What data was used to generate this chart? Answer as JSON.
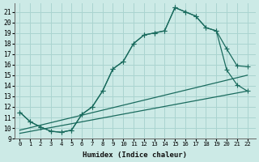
{
  "xlabel": "Humidex (Indice chaleur)",
  "bg_color": "#cceae6",
  "grid_color": "#aad4d0",
  "line_color": "#1a6b5e",
  "xlim": [
    -0.5,
    22.8
  ],
  "ylim": [
    9,
    21.8
  ],
  "xticks": [
    0,
    1,
    2,
    3,
    4,
    5,
    6,
    7,
    8,
    9,
    10,
    11,
    12,
    13,
    14,
    15,
    16,
    17,
    18,
    19,
    20,
    21,
    22
  ],
  "yticks": [
    9,
    10,
    11,
    12,
    13,
    14,
    15,
    16,
    17,
    18,
    19,
    20,
    21
  ],
  "curve_upper_x": [
    0,
    1,
    2,
    3,
    4,
    5,
    6,
    7,
    8,
    9,
    10,
    11,
    12,
    13,
    14,
    15,
    16,
    17,
    18,
    19,
    20,
    21,
    22
  ],
  "curve_upper_y": [
    11.5,
    10.6,
    10.1,
    9.7,
    9.6,
    9.8,
    11.3,
    12.0,
    13.5,
    15.6,
    16.3,
    18.0,
    18.8,
    19.0,
    19.2,
    21.4,
    21.0,
    20.6,
    19.5,
    19.2,
    17.5,
    15.9,
    15.8
  ],
  "curve_mid_x": [
    0,
    1,
    2,
    3,
    4,
    5,
    6,
    7,
    8,
    9,
    10,
    11,
    12,
    13,
    14,
    15,
    16,
    17,
    18,
    19,
    20,
    21,
    22
  ],
  "curve_mid_y": [
    11.5,
    10.6,
    10.1,
    9.7,
    9.6,
    9.8,
    11.3,
    12.0,
    13.5,
    15.6,
    16.3,
    18.0,
    18.8,
    19.0,
    19.2,
    21.4,
    21.0,
    20.6,
    19.5,
    19.2,
    15.5,
    14.1,
    13.5
  ],
  "line1_x": [
    0,
    22
  ],
  "line1_y": [
    9.8,
    15.0
  ],
  "line2_x": [
    0,
    22
  ],
  "line2_y": [
    9.5,
    13.5
  ]
}
